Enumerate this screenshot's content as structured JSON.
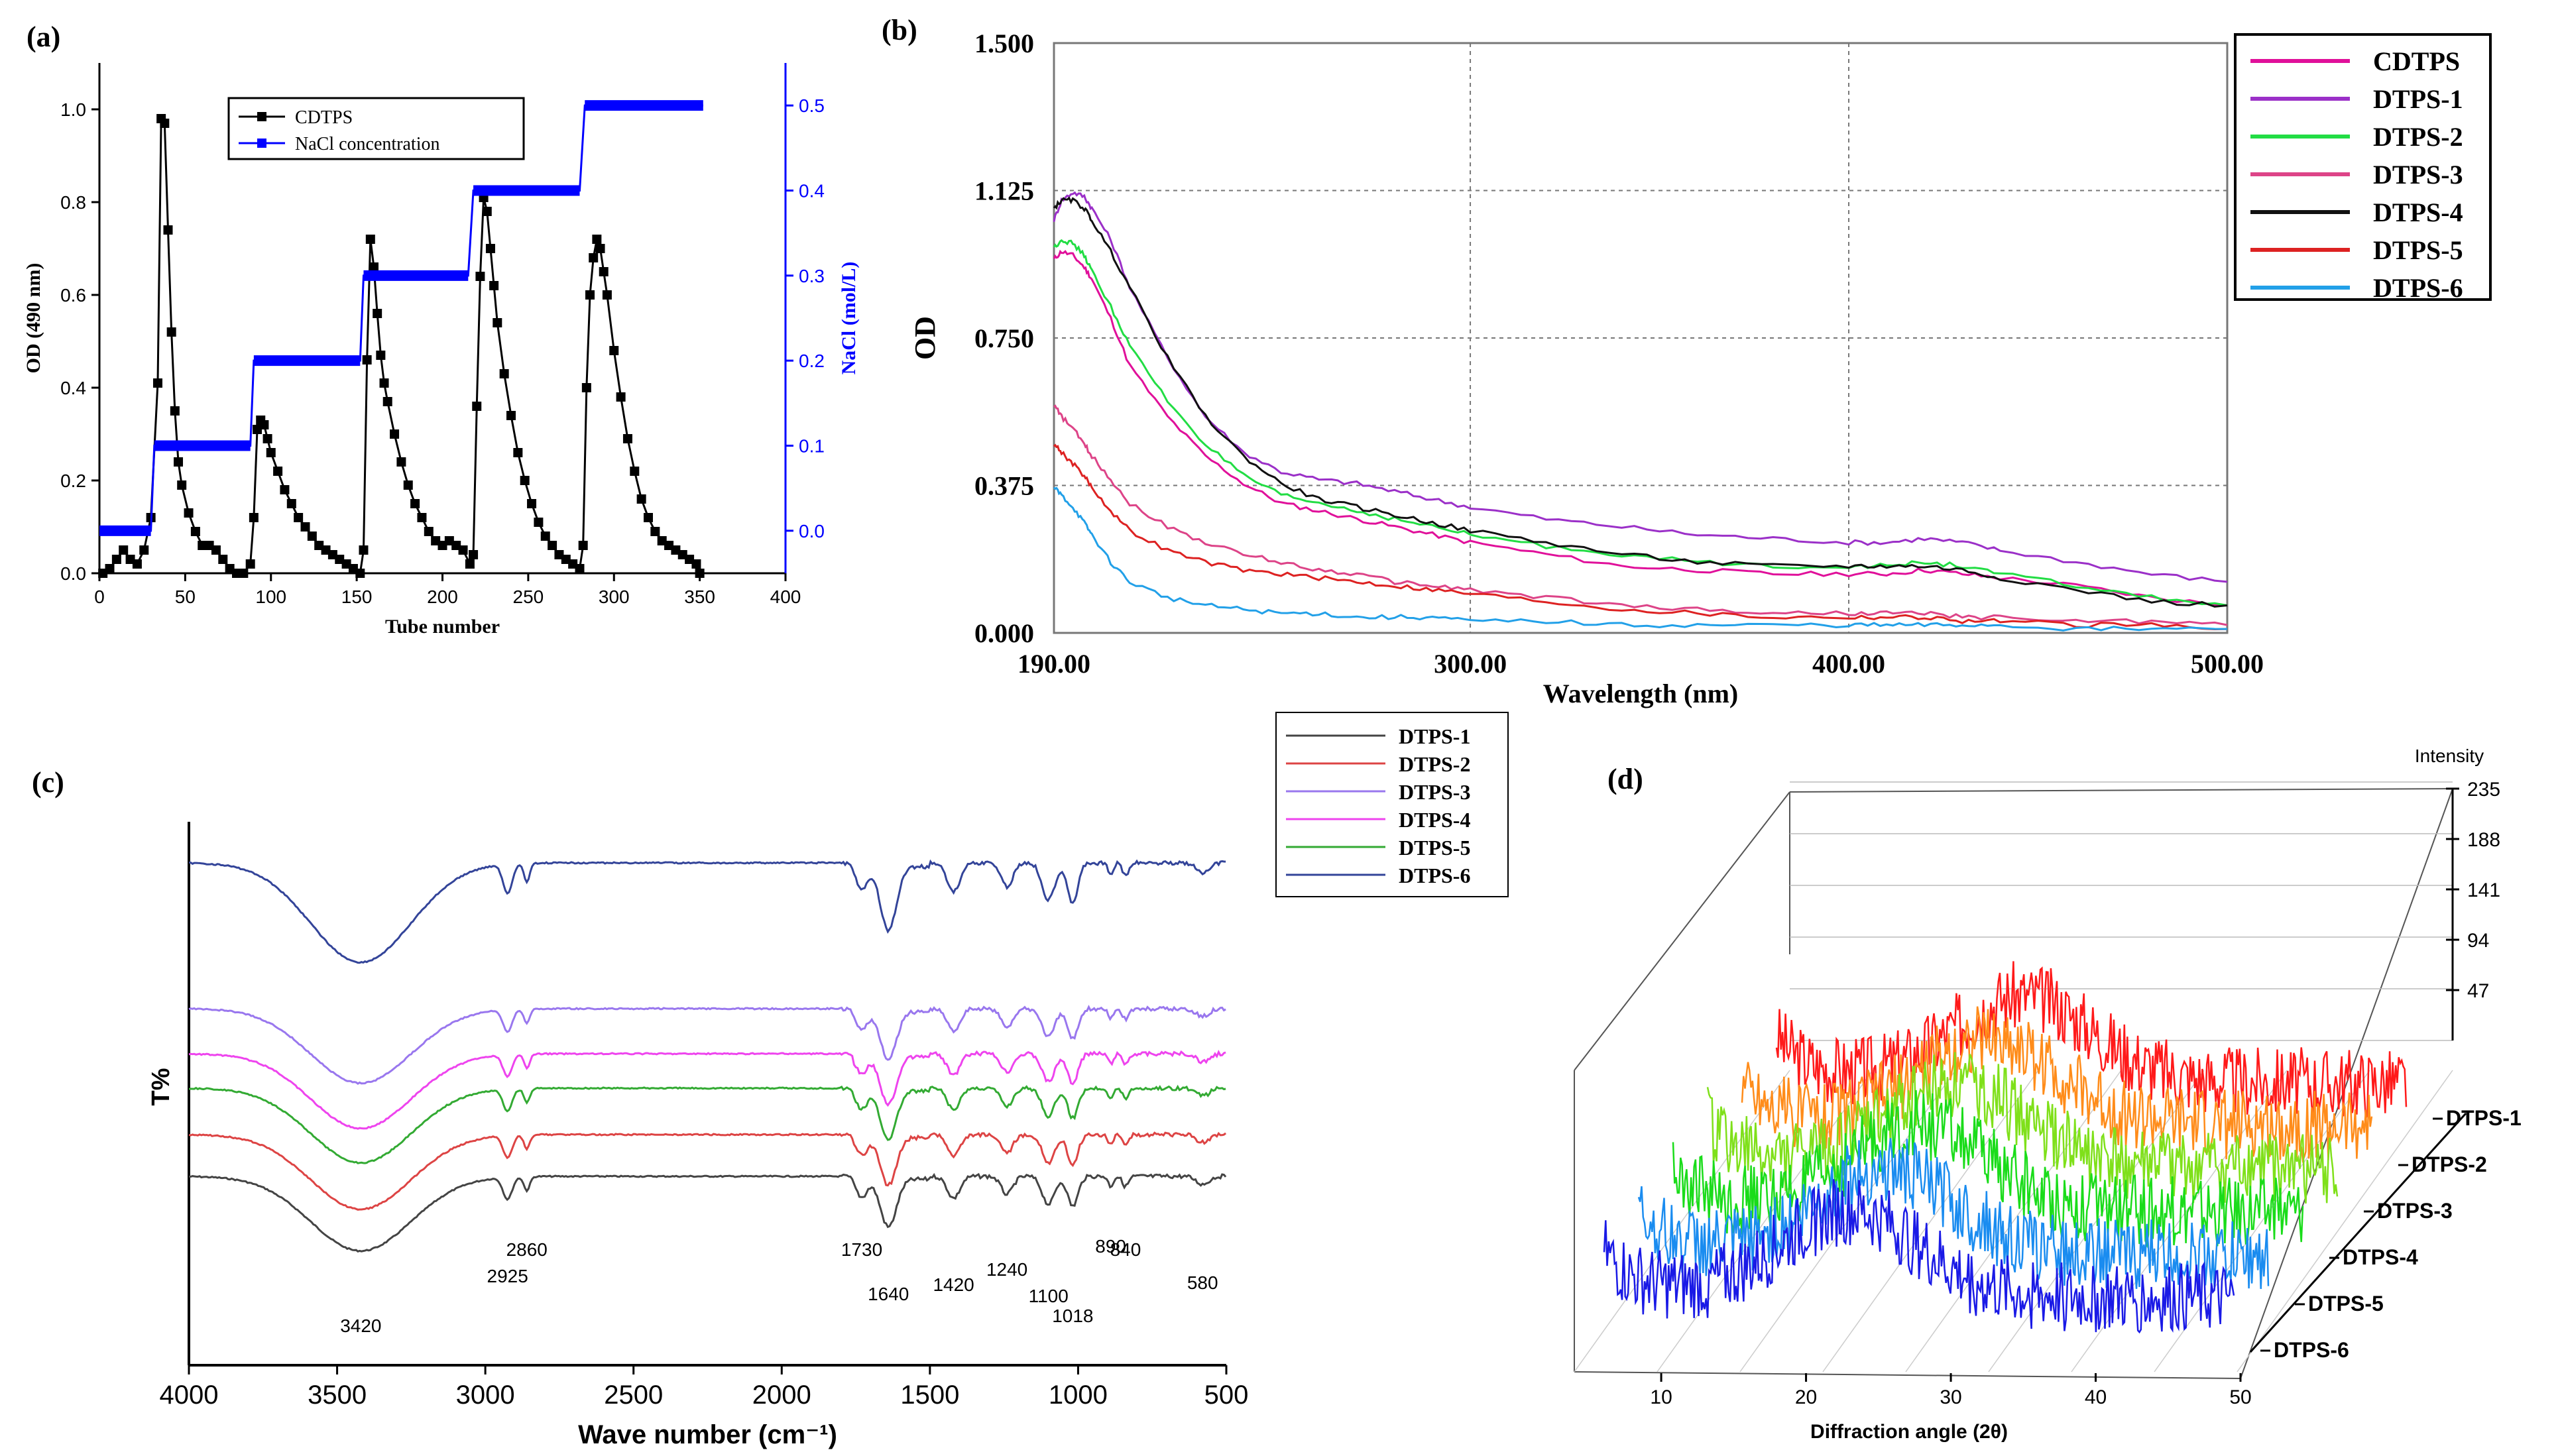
{
  "panels": {
    "a": {
      "label": "(a)"
    },
    "b": {
      "label": "(b)"
    },
    "c": {
      "label": "(c)"
    },
    "d": {
      "label": "(d)"
    }
  },
  "chart_data": [
    {
      "id": "a",
      "type": "line",
      "xlabel": "Tube number",
      "ylabel": "OD (490 nm)",
      "y2label": "NaCl (mol/L)",
      "xlim": [
        0,
        400
      ],
      "ylim": [
        0,
        1.1
      ],
      "y2lim": [
        -0.05,
        0.55
      ],
      "xticks": [
        "0",
        "50",
        "100",
        "150",
        "200",
        "250",
        "300",
        "350",
        "400"
      ],
      "yticks": [
        "0.0",
        "0.2",
        "0.4",
        "0.6",
        "0.8",
        "1.0"
      ],
      "y2ticks": [
        "0.0",
        "0.1",
        "0.2",
        "0.3",
        "0.4",
        "0.5"
      ],
      "legend_position": "top-center",
      "colors": {
        "od": "#000000",
        "nacl": "#0000ff"
      },
      "series": [
        {
          "name": "CDTPS",
          "marker": "square",
          "x": [
            2,
            6,
            10,
            14,
            18,
            22,
            26,
            30,
            34,
            36,
            38,
            40,
            42,
            44,
            46,
            48,
            52,
            56,
            60,
            64,
            68,
            72,
            76,
            80,
            84,
            88,
            90,
            92,
            94,
            96,
            98,
            100,
            104,
            108,
            112,
            116,
            120,
            124,
            128,
            132,
            136,
            140,
            144,
            148,
            152,
            154,
            156,
            158,
            160,
            162,
            164,
            166,
            168,
            172,
            176,
            180,
            184,
            188,
            192,
            196,
            200,
            204,
            208,
            212,
            216,
            218,
            220,
            222,
            224,
            226,
            228,
            230,
            232,
            236,
            240,
            244,
            248,
            252,
            256,
            260,
            264,
            268,
            272,
            276,
            280,
            282,
            284,
            286,
            288,
            290,
            292,
            294,
            296,
            300,
            304,
            308,
            312,
            316,
            320,
            324,
            328,
            332,
            336,
            340,
            344,
            348,
            350
          ],
          "y": [
            0.0,
            0.01,
            0.03,
            0.05,
            0.03,
            0.02,
            0.05,
            0.12,
            0.41,
            0.98,
            0.97,
            0.74,
            0.52,
            0.35,
            0.24,
            0.19,
            0.13,
            0.09,
            0.06,
            0.06,
            0.05,
            0.03,
            0.01,
            0.0,
            0.0,
            0.02,
            0.12,
            0.31,
            0.33,
            0.32,
            0.29,
            0.26,
            0.22,
            0.18,
            0.15,
            0.12,
            0.1,
            0.08,
            0.06,
            0.05,
            0.04,
            0.03,
            0.02,
            0.01,
            0.0,
            0.05,
            0.46,
            0.72,
            0.66,
            0.56,
            0.47,
            0.41,
            0.37,
            0.3,
            0.24,
            0.19,
            0.15,
            0.12,
            0.09,
            0.07,
            0.06,
            0.07,
            0.06,
            0.05,
            0.02,
            0.04,
            0.36,
            0.64,
            0.81,
            0.78,
            0.7,
            0.62,
            0.54,
            0.43,
            0.34,
            0.26,
            0.2,
            0.15,
            0.11,
            0.08,
            0.06,
            0.04,
            0.03,
            0.02,
            0.01,
            0.06,
            0.4,
            0.6,
            0.68,
            0.72,
            0.7,
            0.65,
            0.6,
            0.48,
            0.38,
            0.29,
            0.22,
            0.16,
            0.12,
            0.09,
            0.07,
            0.06,
            0.05,
            0.04,
            0.03,
            0.02,
            0.0
          ]
        },
        {
          "name": "NaCl concentration",
          "marker": "square",
          "axis": "right",
          "x": [
            0,
            30,
            32,
            88,
            90,
            152,
            154,
            215,
            218,
            280,
            283,
            352
          ],
          "y": [
            0.0,
            0.0,
            0.1,
            0.1,
            0.2,
            0.2,
            0.3,
            0.3,
            0.4,
            0.4,
            0.5,
            0.5
          ]
        }
      ]
    },
    {
      "id": "b",
      "type": "line",
      "xlabel": "Wavelength (nm)",
      "ylabel": "OD",
      "xlim": [
        190,
        500
      ],
      "ylim": [
        0,
        1.5
      ],
      "xticks": [
        "190.00",
        "300.00",
        "400.00",
        "500.00"
      ],
      "yticks": [
        "0.000",
        "0.375",
        "0.750",
        "1.125",
        "1.500"
      ],
      "grid": true,
      "legend_position": "right",
      "x": [
        190,
        192,
        195,
        198,
        200,
        205,
        210,
        220,
        230,
        240,
        250,
        260,
        270,
        280,
        290,
        300,
        320,
        340,
        360,
        380,
        400,
        410,
        420,
        430,
        440,
        460,
        480,
        500
      ],
      "series": [
        {
          "name": "CDTPS",
          "color": "#e0109a",
          "values": [
            0.95,
            0.97,
            0.96,
            0.93,
            0.9,
            0.8,
            0.68,
            0.55,
            0.45,
            0.38,
            0.33,
            0.31,
            0.29,
            0.27,
            0.25,
            0.23,
            0.2,
            0.17,
            0.16,
            0.15,
            0.15,
            0.15,
            0.16,
            0.15,
            0.14,
            0.12,
            0.09,
            0.07
          ]
        },
        {
          "name": "DTPS-1",
          "color": "#9b30c8",
          "values": [
            1.05,
            1.1,
            1.12,
            1.11,
            1.08,
            1.0,
            0.88,
            0.7,
            0.55,
            0.46,
            0.41,
            0.39,
            0.38,
            0.36,
            0.34,
            0.32,
            0.29,
            0.27,
            0.25,
            0.24,
            0.23,
            0.23,
            0.24,
            0.23,
            0.21,
            0.18,
            0.15,
            0.13
          ]
        },
        {
          "name": "DTPS-2",
          "color": "#22dd44",
          "values": [
            0.98,
            1.0,
            0.99,
            0.96,
            0.92,
            0.83,
            0.73,
            0.59,
            0.48,
            0.4,
            0.35,
            0.33,
            0.31,
            0.29,
            0.27,
            0.25,
            0.22,
            0.2,
            0.18,
            0.17,
            0.17,
            0.17,
            0.18,
            0.17,
            0.15,
            0.12,
            0.09,
            0.07
          ]
        },
        {
          "name": "DTPS-3",
          "color": "#dd4488",
          "values": [
            0.58,
            0.55,
            0.52,
            0.48,
            0.45,
            0.39,
            0.33,
            0.27,
            0.23,
            0.2,
            0.18,
            0.16,
            0.15,
            0.13,
            0.12,
            0.11,
            0.09,
            0.07,
            0.06,
            0.05,
            0.05,
            0.05,
            0.05,
            0.04,
            0.04,
            0.03,
            0.03,
            0.02
          ]
        },
        {
          "name": "DTPS-4",
          "color": "#111111",
          "values": [
            1.08,
            1.1,
            1.1,
            1.08,
            1.05,
            0.97,
            0.88,
            0.7,
            0.55,
            0.45,
            0.38,
            0.34,
            0.32,
            0.3,
            0.28,
            0.26,
            0.23,
            0.2,
            0.18,
            0.17,
            0.17,
            0.17,
            0.17,
            0.16,
            0.14,
            0.11,
            0.08,
            0.07
          ]
        },
        {
          "name": "DTPS-5",
          "color": "#dd2222",
          "values": [
            0.48,
            0.46,
            0.43,
            0.4,
            0.37,
            0.31,
            0.26,
            0.21,
            0.18,
            0.16,
            0.15,
            0.14,
            0.13,
            0.12,
            0.11,
            0.1,
            0.08,
            0.06,
            0.05,
            0.04,
            0.04,
            0.04,
            0.04,
            0.03,
            0.03,
            0.02,
            0.02,
            0.01
          ]
        },
        {
          "name": "DTPS-6",
          "color": "#22a0e8",
          "values": [
            0.37,
            0.35,
            0.32,
            0.28,
            0.25,
            0.18,
            0.13,
            0.09,
            0.07,
            0.06,
            0.05,
            0.05,
            0.04,
            0.04,
            0.04,
            0.03,
            0.03,
            0.02,
            0.02,
            0.02,
            0.02,
            0.02,
            0.02,
            0.02,
            0.02,
            0.01,
            0.01,
            0.01
          ]
        }
      ]
    },
    {
      "id": "c",
      "type": "line",
      "xlabel": "Wave number (cm⁻¹)",
      "ylabel": "T%",
      "xlim": [
        4000,
        500
      ],
      "reversed_x": true,
      "xticks": [
        "4000",
        "3500",
        "3000",
        "2500",
        "2000",
        "1500",
        "1000",
        "500"
      ],
      "legend_position": "top-right",
      "annotations": [
        "3420",
        "2925",
        "2860",
        "1730",
        "1640",
        "1420",
        "1240",
        "1100",
        "1018",
        "890",
        "840",
        "580"
      ],
      "annotation_x": [
        3420,
        2925,
        2860,
        1730,
        1640,
        1420,
        1240,
        1100,
        1018,
        890,
        840,
        580
      ],
      "series": [
        {
          "name": "DTPS-1",
          "color": "#444444",
          "offset": 0
        },
        {
          "name": "DTPS-2",
          "color": "#dd4444",
          "offset": 1
        },
        {
          "name": "DTPS-3",
          "color": "#9977ee",
          "offset": 4
        },
        {
          "name": "DTPS-4",
          "color": "#ee44ee",
          "offset": 3
        },
        {
          "name": "DTPS-5",
          "color": "#33aa33",
          "offset": 2
        },
        {
          "name": "DTPS-6",
          "color": "#334499",
          "offset": 5
        }
      ]
    },
    {
      "id": "d",
      "type": "line",
      "title": "Intensity",
      "xlabel": "Diffraction angle (2θ)",
      "xlim": [
        4,
        50
      ],
      "xticks": [
        "10",
        "20",
        "30",
        "40",
        "50"
      ],
      "zticks": [
        "47",
        "94",
        "141",
        "188",
        "235"
      ],
      "zlim": [
        0,
        235
      ],
      "series": [
        {
          "name": "DTPS-1",
          "color": "#ff1a1a"
        },
        {
          "name": "DTPS-2",
          "color": "#ff8c1a"
        },
        {
          "name": "DTPS-3",
          "color": "#7fe01a"
        },
        {
          "name": "DTPS-4",
          "color": "#1adc1a"
        },
        {
          "name": "DTPS-5",
          "color": "#1a8cf0"
        },
        {
          "name": "DTPS-6",
          "color": "#1a1ae6"
        }
      ]
    }
  ]
}
